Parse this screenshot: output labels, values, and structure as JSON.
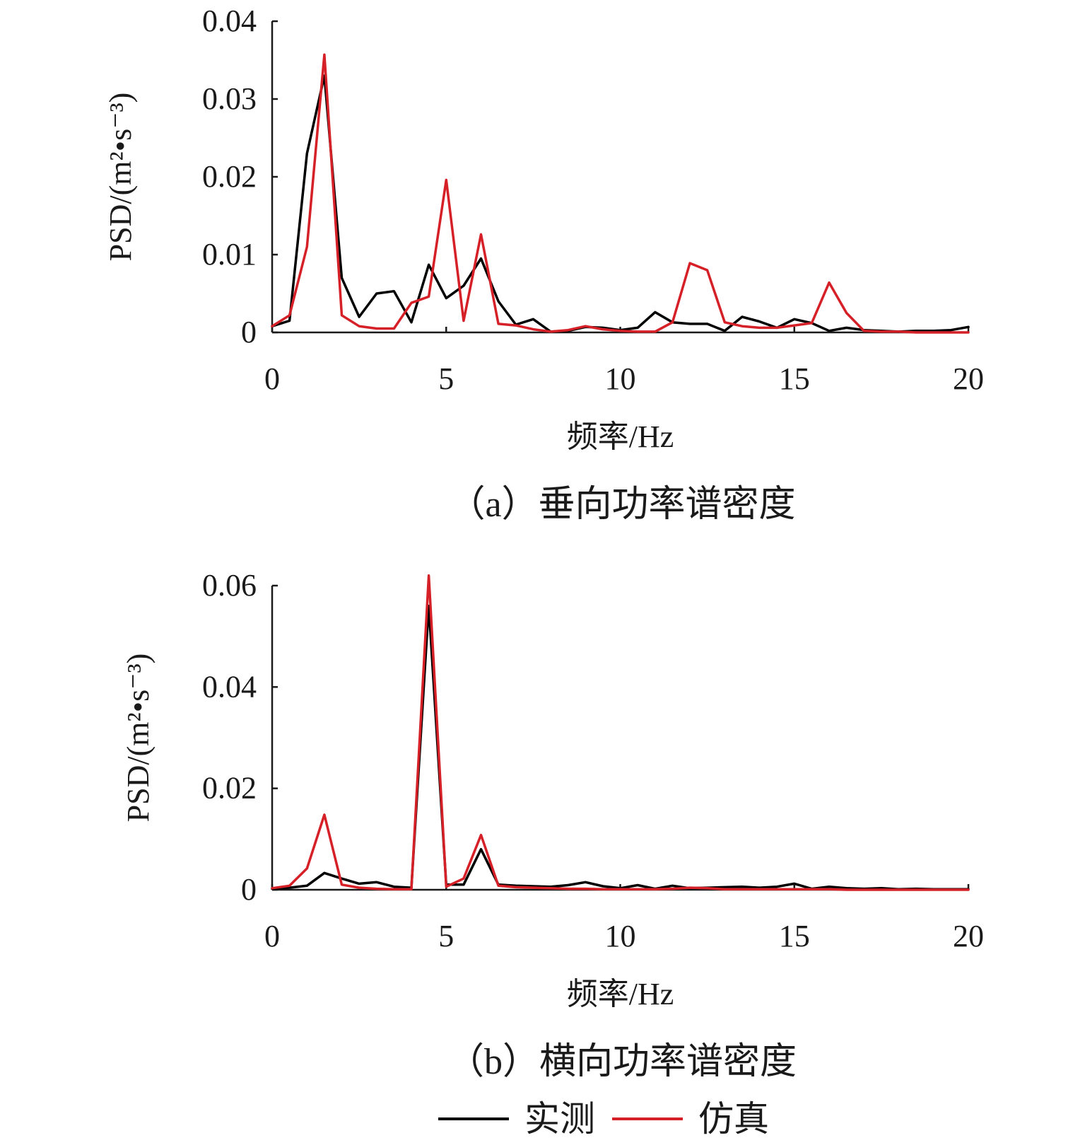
{
  "chart_data": [
    {
      "type": "line",
      "caption": "（a）垂向功率谱密度",
      "xlabel": "频率/Hz",
      "ylabel": "PSD/(m²•s⁻³)",
      "xlim": [
        0,
        20
      ],
      "ylim": [
        0,
        0.04
      ],
      "x_ticks": [
        "0",
        "5",
        "10",
        "15",
        "20"
      ],
      "y_ticks": [
        "0",
        "0.01",
        "0.02",
        "0.03",
        "0.04"
      ],
      "grid": false,
      "series": [
        {
          "name": "实测",
          "color": "#000000",
          "x": [
            0,
            0.5,
            1,
            1.5,
            2,
            2.5,
            3,
            3.5,
            4,
            4.5,
            5,
            5.5,
            6,
            6.5,
            7,
            7.5,
            8,
            8.5,
            9,
            9.5,
            10,
            10.5,
            11,
            11.5,
            12,
            12.5,
            13,
            13.5,
            14,
            14.5,
            15,
            15.5,
            16,
            16.5,
            17,
            17.5,
            18,
            18.5,
            19,
            19.5,
            20
          ],
          "y": [
            0.0008,
            0.0015,
            0.023,
            0.033,
            0.007,
            0.002,
            0.005,
            0.0053,
            0.0013,
            0.0087,
            0.0044,
            0.006,
            0.0095,
            0.004,
            0.001,
            0.0017,
            0.0001,
            0.0002,
            0.0007,
            0.0006,
            0.0003,
            0.0006,
            0.0026,
            0.0013,
            0.0011,
            0.0011,
            0.0002,
            0.002,
            0.0014,
            0.0006,
            0.0017,
            0.0012,
            0.0002,
            0.0006,
            0.0003,
            0.0002,
            0.0001,
            0.0002,
            0.0002,
            0.0003,
            0.0007
          ]
        },
        {
          "name": "仿真",
          "color": "#d62027",
          "x": [
            0,
            0.5,
            1,
            1.5,
            2,
            2.5,
            3,
            3.5,
            4,
            4.5,
            5,
            5.5,
            6,
            6.5,
            7,
            7.5,
            8,
            8.5,
            9,
            9.5,
            10,
            10.5,
            11,
            11.5,
            12,
            12.5,
            13,
            13.5,
            14,
            14.5,
            15,
            15.5,
            16,
            16.5,
            17,
            17.5,
            18,
            18.5,
            19,
            19.5,
            20
          ],
          "y": [
            0.0008,
            0.0022,
            0.011,
            0.0357,
            0.0022,
            0.0008,
            0.0005,
            0.0005,
            0.0038,
            0.0046,
            0.0196,
            0.0015,
            0.0126,
            0.0011,
            0.0009,
            0.0004,
            0.0001,
            0.0003,
            0.0008,
            0.0004,
            0.0002,
            0.0001,
            0.0001,
            0.0013,
            0.0089,
            0.008,
            0.0013,
            0.0008,
            0.0006,
            0.0006,
            0.0009,
            0.0012,
            0.0064,
            0.0025,
            0.0002,
            0.0001,
            0.0001,
            0,
            0,
            0,
            0
          ]
        }
      ]
    },
    {
      "type": "line",
      "caption": "（b）横向功率谱密度",
      "xlabel": "频率/Hz",
      "ylabel": "PSD/(m²•s⁻³)",
      "xlim": [
        0,
        20
      ],
      "ylim": [
        0,
        0.06
      ],
      "x_ticks": [
        "0",
        "5",
        "10",
        "15",
        "20"
      ],
      "y_ticks": [
        "0",
        "0.02",
        "0.04",
        "0.06"
      ],
      "grid": false,
      "series": [
        {
          "name": "实测",
          "color": "#000000",
          "x": [
            0,
            0.5,
            1,
            1.5,
            2,
            2.5,
            3,
            3.5,
            4,
            4.5,
            5,
            5.5,
            6,
            6.5,
            7,
            7.5,
            8,
            8.5,
            9,
            9.5,
            10,
            10.5,
            11,
            11.5,
            12,
            12.5,
            13,
            13.5,
            14,
            14.5,
            15,
            15.5,
            16,
            16.5,
            17,
            17.5,
            18,
            18.5,
            19,
            19.5,
            20
          ],
          "y": [
            0.0002,
            0.0004,
            0.0008,
            0.0033,
            0.0022,
            0.0012,
            0.0015,
            0.0006,
            0.0004,
            0.056,
            0.001,
            0.001,
            0.008,
            0.001,
            0.0008,
            0.0007,
            0.0006,
            0.0009,
            0.0015,
            0.0007,
            0.0003,
            0.0009,
            0.0002,
            0.0008,
            0.0003,
            0.0004,
            0.0005,
            0.0006,
            0.0004,
            0.0006,
            0.0012,
            0.0002,
            0.0006,
            0.0003,
            0.0002,
            0.0003,
            0.0001,
            0.0002,
            0.0001,
            0.0001,
            0.0001
          ]
        },
        {
          "name": "仿真",
          "color": "#d62027",
          "x": [
            0,
            0.5,
            1,
            1.5,
            2,
            2.5,
            3,
            3.5,
            4,
            4.5,
            5,
            5.5,
            6,
            6.5,
            7,
            7.5,
            8,
            8.5,
            9,
            9.5,
            10,
            10.5,
            11,
            11.5,
            12,
            12.5,
            13,
            13.5,
            14,
            14.5,
            15,
            15.5,
            16,
            16.5,
            17,
            17.5,
            18,
            18.5,
            19,
            19.5,
            20
          ],
          "y": [
            0.0003,
            0.0008,
            0.0042,
            0.0148,
            0.001,
            0.0004,
            0.0002,
            0.0001,
            0.0001,
            0.062,
            0.0006,
            0.0022,
            0.0108,
            0.0008,
            0.0005,
            0.0004,
            0.0003,
            0.0002,
            0.0002,
            0.0001,
            0.0001,
            0.0001,
            0.0001,
            0.0002,
            0.0004,
            0.0003,
            0.0001,
            0.0001,
            0.0001,
            0.0001,
            0.0001,
            0.0001,
            0.0001,
            0,
            0,
            0,
            0,
            0,
            0,
            0,
            0
          ]
        }
      ]
    }
  ],
  "legend": {
    "placement": "bottom-center",
    "items": [
      {
        "label": "实测",
        "color": "#000000"
      },
      {
        "label": "仿真",
        "color": "#d62027"
      }
    ]
  }
}
